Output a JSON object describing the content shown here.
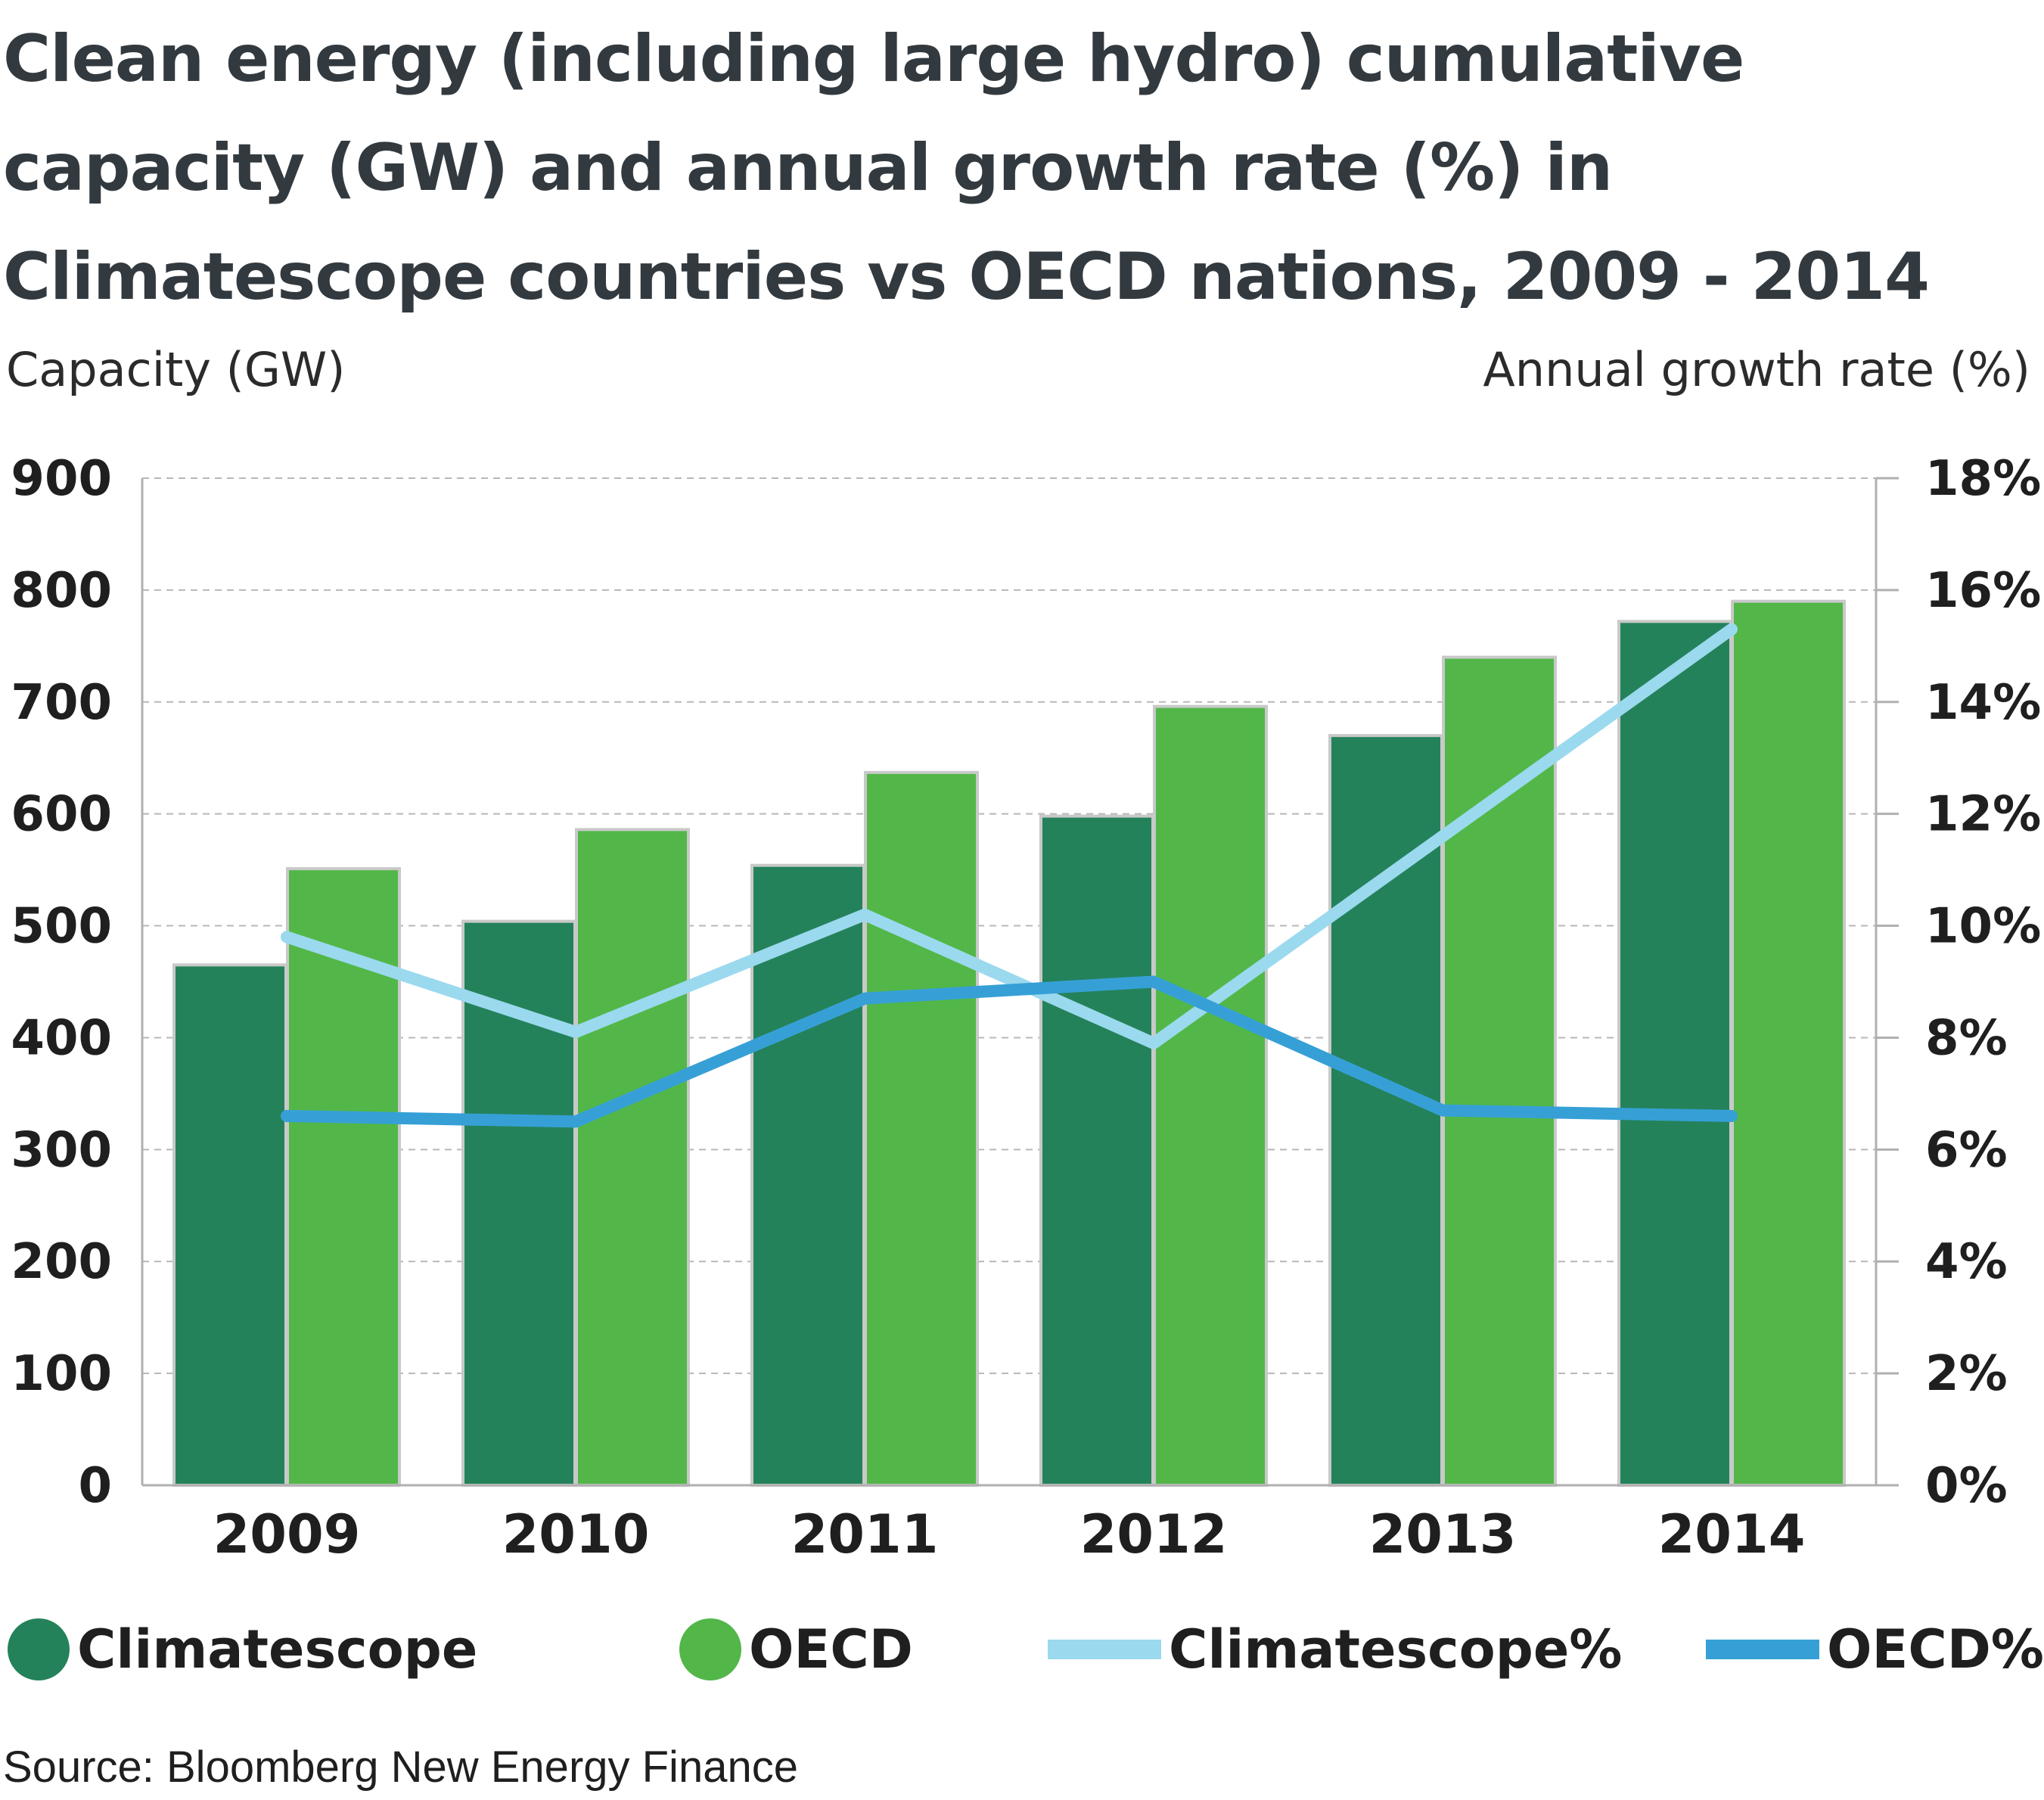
{
  "chart_data": {
    "type": "bar",
    "title": "Clean energy (including large hydro) cumulative capacity (GW) and annual growth rate (%) in Climatescope countries vs OECD nations, 2009 - 2014",
    "ylabel_left": "Capacity (GW)",
    "ylabel_right": "Annual growth rate (%)",
    "categories": [
      "2009",
      "2010",
      "2011",
      "2012",
      "2013",
      "2014"
    ],
    "ylim_left": [
      0,
      900
    ],
    "ylim_right": [
      0,
      18
    ],
    "yticks_left": [
      "0",
      "100",
      "200",
      "300",
      "400",
      "500",
      "600",
      "700",
      "800",
      "900"
    ],
    "yticks_right": [
      "0%",
      "2%",
      "4%",
      "6%",
      "8%",
      "10%",
      "12%",
      "14%",
      "16%",
      "18%"
    ],
    "grid": true,
    "legend_position": "bottom",
    "bar_series": [
      {
        "name": "Climatescope",
        "color": "#24825a",
        "values": [
          465,
          504,
          554,
          598,
          670,
          772
        ]
      },
      {
        "name": "OECD",
        "color": "#52b748",
        "values": [
          551,
          586,
          637,
          696,
          740,
          790
        ]
      }
    ],
    "line_series": [
      {
        "name": "Climatescope%",
        "color": "#9bd9ef",
        "axis": "right",
        "values": [
          9.8,
          8.1,
          10.2,
          7.9,
          11.6,
          15.3
        ]
      },
      {
        "name": "OECD%",
        "color": "#36a0d6",
        "axis": "right",
        "values": [
          6.6,
          6.5,
          8.7,
          9.0,
          6.7,
          6.6
        ]
      }
    ]
  },
  "legend": {
    "items": [
      {
        "label": "Climatescope",
        "kind": "dot",
        "color": "#24825a"
      },
      {
        "label": "OECD",
        "kind": "dot",
        "color": "#52b748"
      },
      {
        "label": "Climatescope%",
        "kind": "line",
        "color": "#9bd9ef"
      },
      {
        "label": "OECD%",
        "kind": "line",
        "color": "#36a0d6"
      }
    ]
  },
  "source": "Source: Bloomberg New Energy Finance"
}
